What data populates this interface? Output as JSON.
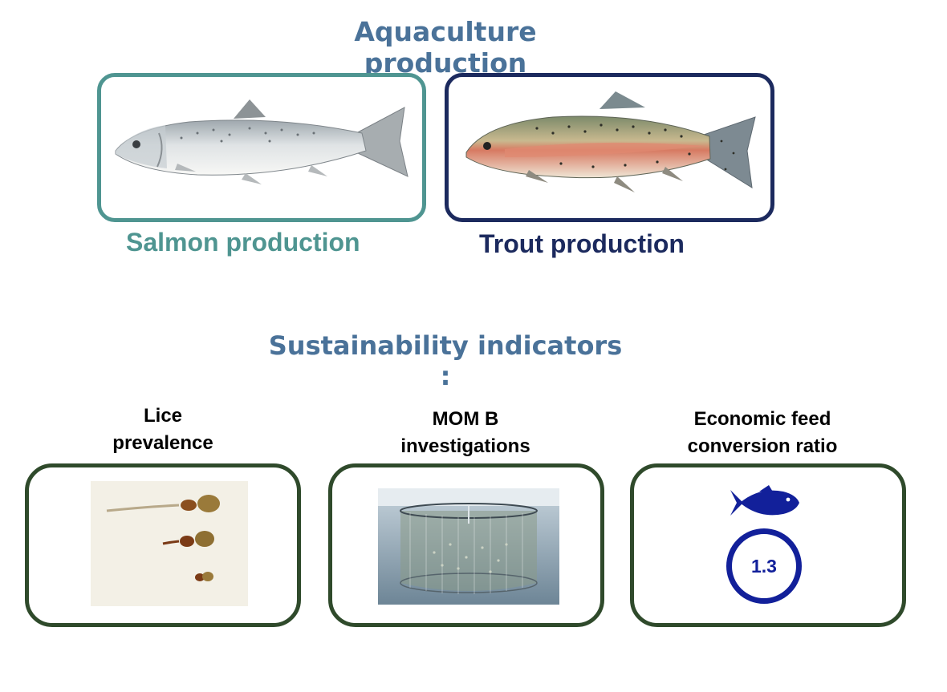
{
  "header": {
    "title": "Aquaculture production"
  },
  "production": [
    {
      "caption": "Salmon production",
      "border_color": "#4f9591",
      "caption_color": "#4f9591"
    },
    {
      "caption": "Trout production",
      "border_color": "#1c2a5e",
      "caption_color": "#1c2a5e"
    }
  ],
  "indicators": {
    "heading": "Sustainability indicators :",
    "items": [
      {
        "label_line1": "Lice",
        "label_line2": "prevalence"
      },
      {
        "label_line1": "MOM B",
        "label_line2": "investigations"
      },
      {
        "label_line1": "Economic feed",
        "label_line2": "conversion ratio",
        "value": "1.3"
      }
    ],
    "box_border_color": "#2f4a2b",
    "fcr_color": "#12209a"
  }
}
